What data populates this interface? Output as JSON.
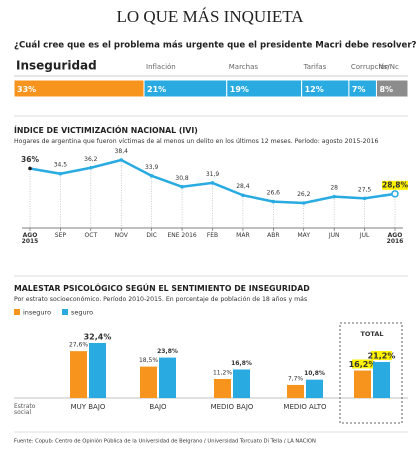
{
  "title": "LO QUE MÁS INQUIETA",
  "source": "Fuente: Copub: Centro de Opinión Pública de la Universidad de Belgrano / Universidad Torcuato Di Tella / LA NACION",
  "chart_data": [
    {
      "type": "bar",
      "stacked": true,
      "orientation": "horizontal",
      "title": "¿Cuál cree que es el problema más urgente que el presidente Macri debe resolver?",
      "categories": [
        "Inseguridad",
        "Inflación",
        "Marchas",
        "Tarifas",
        "Corrupción",
        "Ns/Nc"
      ],
      "values": [
        33,
        21,
        19,
        12,
        7,
        8
      ],
      "value_labels": [
        "33%",
        "21%",
        "19%",
        "12%",
        "7%",
        "8%"
      ],
      "colors": [
        "#f7941d",
        "#29abe2",
        "#29abe2",
        "#29abe2",
        "#29abe2",
        "#8c8c8c"
      ]
    },
    {
      "type": "line",
      "title": "ÍNDICE DE VICTIMIZACIÓN NACIONAL (IVI)",
      "subtitle": "Hogares de argentina que fueron víctimas de al menos un delito en los últimos 12 meses. Período: agosto 2015-2016",
      "categories": [
        "AGO 2015",
        "SEP",
        "OCT",
        "NOV",
        "DIC",
        "ENE 2016",
        "FEB",
        "MAR",
        "ABR",
        "MAY",
        "JUN",
        "JUL",
        "AGO 2016"
      ],
      "values": [
        36,
        34.5,
        36.2,
        38.4,
        33.9,
        30.8,
        31.9,
        28.4,
        26.6,
        26.2,
        28,
        27.5,
        28.8
      ],
      "value_labels": [
        "36%",
        "34,5",
        "36,2",
        "38,4",
        "33,9",
        "30,8",
        "31,9",
        "28,4",
        "26,6",
        "26,2",
        "28",
        "27,5",
        "28,8%"
      ],
      "color": "#29abe2"
    },
    {
      "type": "bar",
      "title": "MALESTAR PSICOLÓGICO SEGÚN EL SENTIMIENTO DE INSEGURIDAD",
      "subtitle": "Por estrato socioeconómico. Período 2010-2015. En porcentaje de población de 18 años y más",
      "x_label": "Estrato social",
      "categories": [
        "MUY BAJO",
        "BAJO",
        "MEDIO BAJO",
        "MEDIO ALTO",
        "TOTAL"
      ],
      "series": [
        {
          "name": "inseguro",
          "color": "#f7941d",
          "values": [
            27.6,
            18.5,
            11.2,
            7.7,
            16.2
          ],
          "value_labels": [
            "27,6%",
            "18,5%",
            "11,2%",
            "7,7%",
            "16,2%"
          ]
        },
        {
          "name": "seguro",
          "color": "#29abe2",
          "values": [
            32.4,
            23.8,
            16.8,
            10.8,
            21.2
          ],
          "value_labels": [
            "32,4%",
            "23,8%",
            "16,8%",
            "10,8%",
            "21,2%"
          ]
        }
      ]
    }
  ]
}
